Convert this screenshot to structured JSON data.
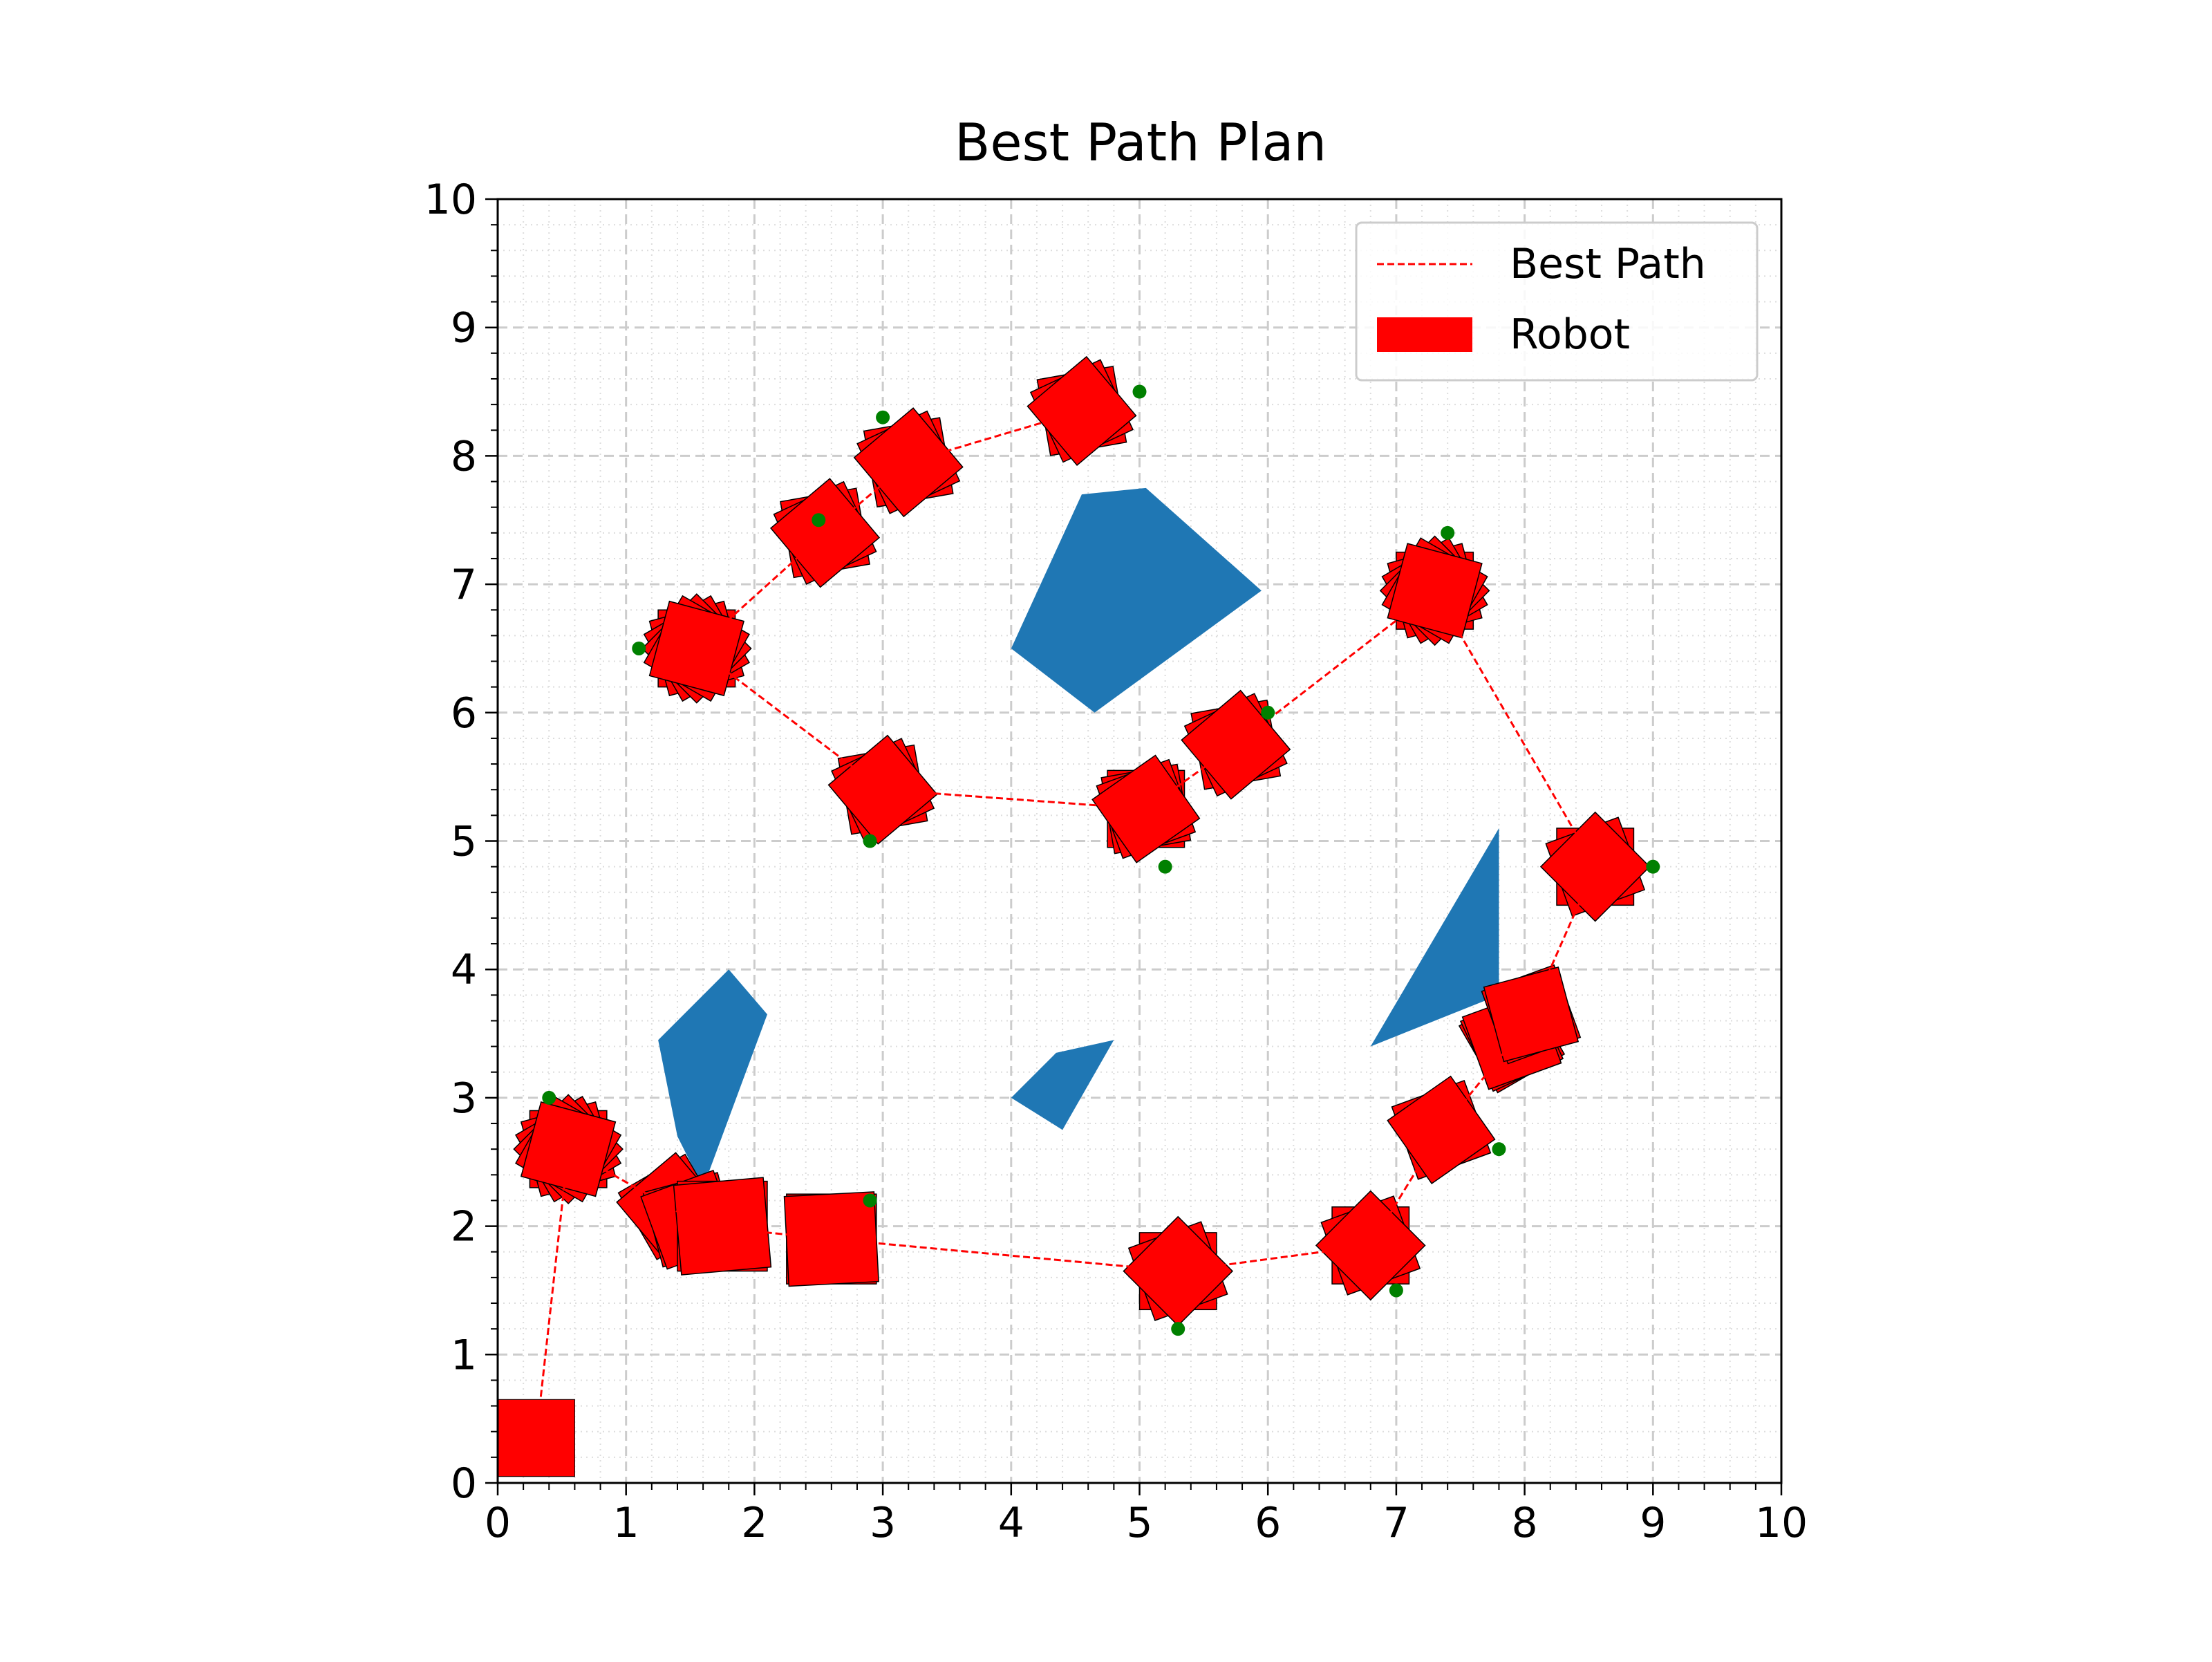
{
  "chart_data": {
    "type": "scatter",
    "title": "Best Path Plan",
    "xlabel": "",
    "ylabel": "",
    "xlim": [
      0,
      10
    ],
    "ylim": [
      0,
      10
    ],
    "xticks": [
      "0",
      "1",
      "2",
      "3",
      "4",
      "5",
      "6",
      "7",
      "8",
      "9",
      "10"
    ],
    "yticks": [
      "0",
      "1",
      "2",
      "3",
      "4",
      "5",
      "6",
      "7",
      "8",
      "9",
      "10"
    ],
    "grid": true,
    "legend": {
      "placement": "top-right",
      "entries": [
        {
          "label": "Best Path",
          "type": "line",
          "color": "#ff0000"
        },
        {
          "label": "Robot",
          "type": "patch",
          "color": "#ff0000"
        }
      ]
    },
    "colors": {
      "path": "#ff0000",
      "robot": "#ff0000",
      "obstacle": "#1f77b4",
      "goal": "#008000"
    },
    "best_path": [
      [
        0.3,
        0.35
      ],
      [
        0.55,
        2.6
      ],
      [
        1.6,
        2.0
      ],
      [
        2.6,
        1.9
      ],
      [
        5.3,
        1.65
      ],
      [
        6.8,
        1.85
      ],
      [
        7.35,
        2.75
      ],
      [
        8.0,
        3.55
      ],
      [
        8.55,
        4.8
      ],
      [
        7.3,
        6.95
      ],
      [
        5.75,
        5.75
      ],
      [
        5.05,
        5.25
      ],
      [
        3.0,
        5.4
      ],
      [
        1.55,
        6.5
      ],
      [
        2.55,
        7.4
      ],
      [
        3.2,
        7.95
      ],
      [
        4.55,
        8.35
      ]
    ],
    "robot_start": {
      "x": 0.3,
      "y": 0.35,
      "size": 0.6,
      "angle": 0
    },
    "robot_poses": [
      {
        "x": 0.55,
        "y": 2.6,
        "size": 0.6,
        "angles": [
          0,
          15,
          30,
          45,
          60,
          75
        ]
      },
      {
        "x": 1.35,
        "y": 2.15,
        "size": 0.6,
        "angles": [
          30,
          40
        ]
      },
      {
        "x": 1.5,
        "y": 2.05,
        "size": 0.6,
        "angles": [
          15,
          20
        ]
      },
      {
        "x": 1.75,
        "y": 2.0,
        "size": 0.7,
        "angles": [
          0,
          5
        ]
      },
      {
        "x": 2.6,
        "y": 1.9,
        "size": 0.7,
        "angles": [
          0,
          3
        ]
      },
      {
        "x": 5.3,
        "y": 1.65,
        "size": 0.6,
        "angles": [
          0,
          20,
          45
        ]
      },
      {
        "x": 6.8,
        "y": 1.85,
        "size": 0.6,
        "angles": [
          0,
          20,
          45
        ]
      },
      {
        "x": 7.35,
        "y": 2.75,
        "size": 0.6,
        "angles": [
          20,
          35
        ]
      },
      {
        "x": 7.9,
        "y": 3.45,
        "size": 0.6,
        "angles": [
          30,
          25,
          20
        ]
      },
      {
        "x": 8.05,
        "y": 3.65,
        "size": 0.6,
        "angles": [
          20,
          15
        ]
      },
      {
        "x": 8.55,
        "y": 4.8,
        "size": 0.6,
        "angles": [
          0,
          20,
          45
        ]
      },
      {
        "x": 7.3,
        "y": 6.95,
        "size": 0.6,
        "angles": [
          0,
          15,
          30,
          45,
          60,
          75
        ]
      },
      {
        "x": 5.75,
        "y": 5.75,
        "size": 0.6,
        "angles": [
          10,
          25,
          40
        ]
      },
      {
        "x": 5.05,
        "y": 5.25,
        "size": 0.6,
        "angles": [
          0,
          10,
          20,
          35
        ]
      },
      {
        "x": 3.0,
        "y": 5.4,
        "size": 0.6,
        "angles": [
          10,
          25,
          40
        ]
      },
      {
        "x": 1.55,
        "y": 6.5,
        "size": 0.6,
        "angles": [
          0,
          15,
          30,
          45,
          60,
          75
        ]
      },
      {
        "x": 2.55,
        "y": 7.4,
        "size": 0.6,
        "angles": [
          10,
          25,
          40
        ]
      },
      {
        "x": 3.2,
        "y": 7.95,
        "size": 0.6,
        "angles": [
          10,
          25,
          40
        ]
      },
      {
        "x": 4.55,
        "y": 8.35,
        "size": 0.6,
        "angles": [
          10,
          25,
          40
        ]
      }
    ],
    "goal_points": [
      [
        0.4,
        3.0
      ],
      [
        2.9,
        2.2
      ],
      [
        5.3,
        1.2
      ],
      [
        7.0,
        1.5
      ],
      [
        7.8,
        2.6
      ],
      [
        9.0,
        4.8
      ],
      [
        7.4,
        7.4
      ],
      [
        6.0,
        6.0
      ],
      [
        5.2,
        4.8
      ],
      [
        2.9,
        5.0
      ],
      [
        1.1,
        6.5
      ],
      [
        2.5,
        7.5
      ],
      [
        3.0,
        8.3
      ],
      [
        5.0,
        8.5
      ]
    ],
    "obstacles": [
      [
        [
          1.25,
          3.45
        ],
        [
          1.8,
          4.0
        ],
        [
          2.1,
          3.65
        ],
        [
          1.6,
          2.3
        ],
        [
          1.4,
          2.7
        ]
      ],
      [
        [
          4.0,
          3.0
        ],
        [
          4.35,
          3.35
        ],
        [
          4.8,
          3.45
        ],
        [
          4.4,
          2.75
        ]
      ],
      [
        [
          4.0,
          6.5
        ],
        [
          4.55,
          7.7
        ],
        [
          5.05,
          7.75
        ],
        [
          5.95,
          6.95
        ],
        [
          4.65,
          6.0
        ]
      ],
      [
        [
          6.8,
          3.4
        ],
        [
          7.8,
          5.1
        ],
        [
          7.8,
          3.8
        ]
      ]
    ]
  }
}
